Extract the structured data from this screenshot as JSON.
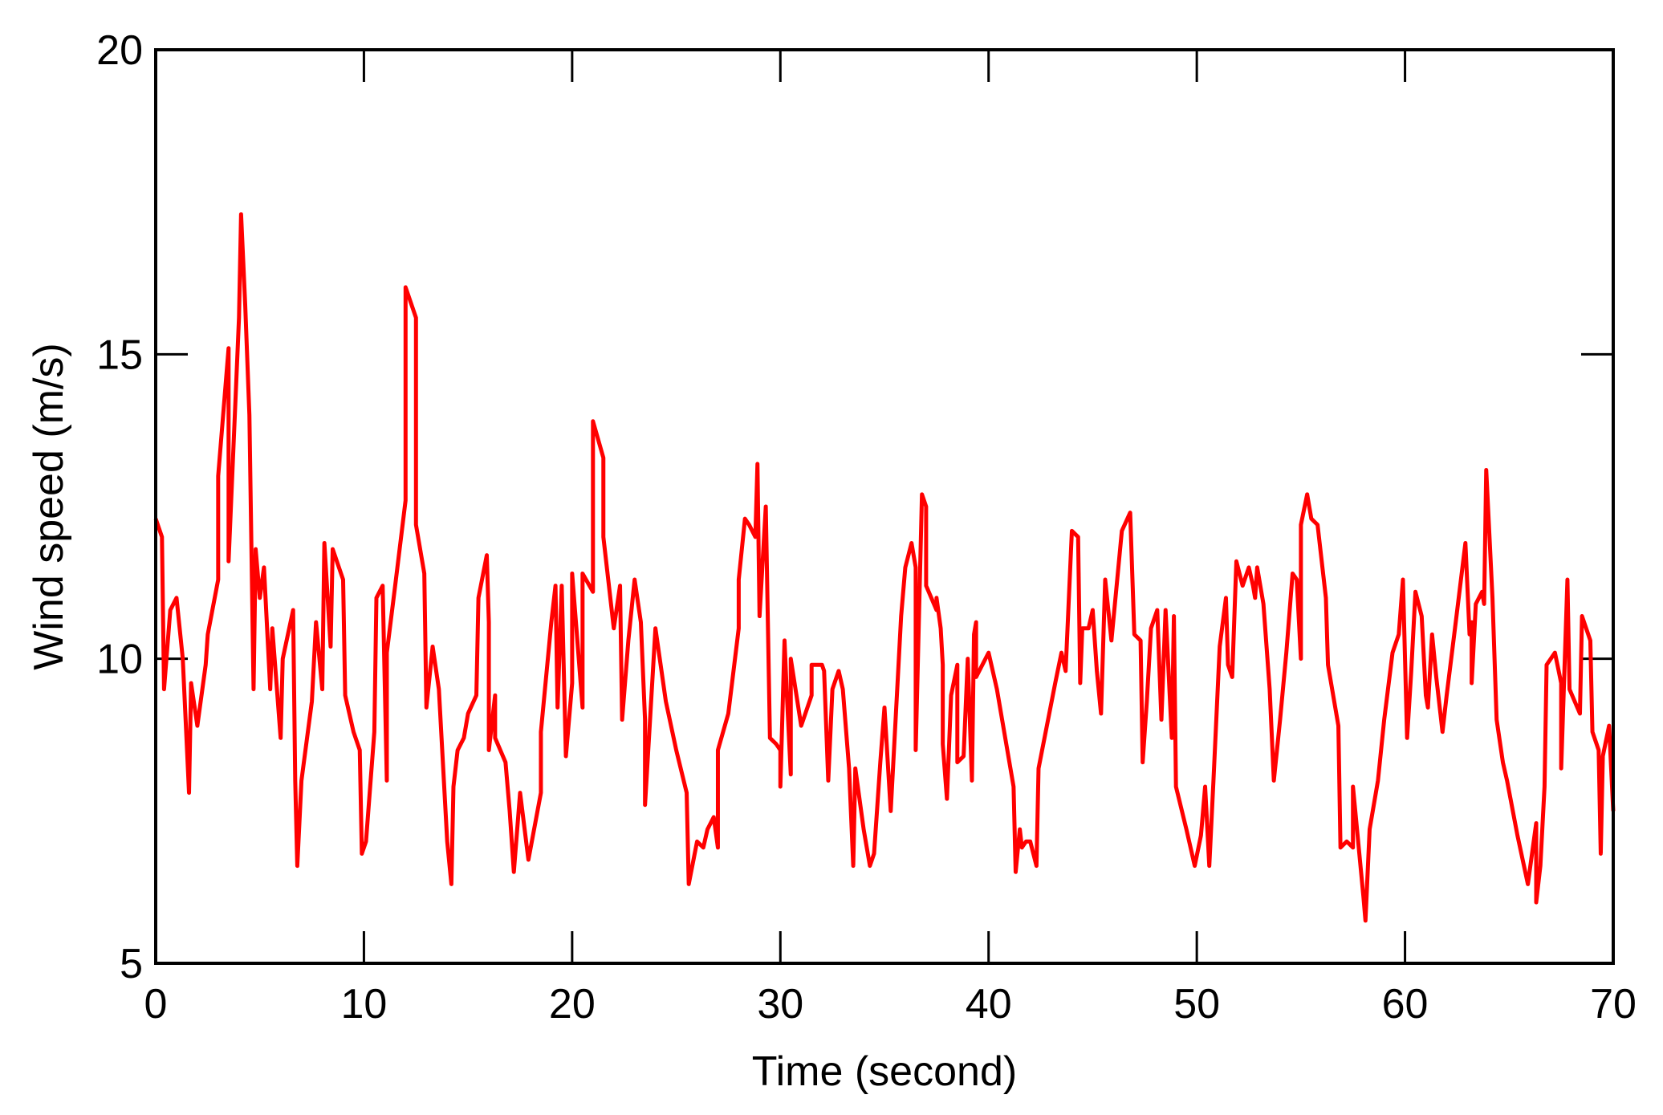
{
  "chart_data": {
    "type": "line",
    "xlabel": "Time (second)",
    "ylabel": "Wind speed (m/s)",
    "xlim": [
      0,
      70
    ],
    "ylim": [
      5,
      20
    ],
    "xticks": [
      0,
      10,
      20,
      30,
      40,
      50,
      60,
      70
    ],
    "yticks": [
      5,
      10,
      15,
      20
    ],
    "x": [
      0,
      0.3,
      0.4,
      0.7,
      1.0,
      1.3,
      1.6,
      1.7,
      2.0,
      2.4,
      2.5,
      3.0,
      3.0,
      3.5,
      3.5,
      4.0,
      4.1,
      4.3,
      4.5,
      4.7,
      4.8,
      5.0,
      5.2,
      5.5,
      5.6,
      6.0,
      6.1,
      6.6,
      6.7,
      6.8,
      7.0,
      7.5,
      7.7,
      8.0,
      8.1,
      8.4,
      8.5,
      9.0,
      9.1,
      9.5,
      9.8,
      9.9,
      10.1,
      10.5,
      10.6,
      10.9,
      11.1,
      11.1,
      11.5,
      12.0,
      12.0,
      12.5,
      12.5,
      12.9,
      13.0,
      13.3,
      13.6,
      14.0,
      14.2,
      14.3,
      14.5,
      14.8,
      15.0,
      15.4,
      15.5,
      15.9,
      16.0,
      16.0,
      16.3,
      16.3,
      16.8,
      17.0,
      17.2,
      17.5,
      17.9,
      18.5,
      18.5,
      19.0,
      19.2,
      19.3,
      19.5,
      19.7,
      20.0,
      20.0,
      20.5,
      20.5,
      21.0,
      21.0,
      21.5,
      21.5,
      22.0,
      22.3,
      22.4,
      22.7,
      23.0,
      23.3,
      23.5,
      23.5,
      24.0,
      24.5,
      25.0,
      25.5,
      25.6,
      26.0,
      26.3,
      26.5,
      26.8,
      27.0,
      27.0,
      27.5,
      28.0,
      28.0,
      28.3,
      28.5,
      28.8,
      28.9,
      29.0,
      29.3,
      29.5,
      29.8,
      30.0,
      30.0,
      30.2,
      30.3,
      30.5,
      30.5,
      31.0,
      31.5,
      31.5,
      32.0,
      32.1,
      32.3,
      32.5,
      32.8,
      33.0,
      33.3,
      33.5,
      33.6,
      34.0,
      34.3,
      34.5,
      34.8,
      35.0,
      35.3,
      35.8,
      36.0,
      36.3,
      36.5,
      36.5,
      36.8,
      37.0,
      37.0,
      37.5,
      37.5,
      37.7,
      37.8,
      37.8,
      38.0,
      38.2,
      38.5,
      38.5,
      38.8,
      39.0,
      39.2,
      39.3,
      39.4,
      39.4,
      40.0,
      40.4,
      40.7,
      41.2,
      41.3,
      41.5,
      41.6,
      41.8,
      42.0,
      42.3,
      42.4,
      42.8,
      43.2,
      43.5,
      43.7,
      44.0,
      44.3,
      44.4,
      44.5,
      44.8,
      45.0,
      45.2,
      45.4,
      45.6,
      45.9,
      46.4,
      46.8,
      47.0,
      47.3,
      47.4,
      47.6,
      47.8,
      48.1,
      48.3,
      48.5,
      48.8,
      48.9,
      49.0,
      49.5,
      49.9,
      50.2,
      50.4,
      50.6,
      50.8,
      51.1,
      51.4,
      51.5,
      51.7,
      51.9,
      52.2,
      52.5,
      52.7,
      52.8,
      52.9,
      53.2,
      53.5,
      53.7,
      54.0,
      54.3,
      54.6,
      54.8,
      55.0,
      55.0,
      55.3,
      55.5,
      55.8,
      56.2,
      56.3,
      56.8,
      56.9,
      57.2,
      57.5,
      57.5,
      58.0,
      58.1,
      58.3,
      58.7,
      59.0,
      59.4,
      59.7,
      59.9,
      60.1,
      60.3,
      60.5,
      60.8,
      61.0,
      61.1,
      61.3,
      61.5,
      61.8,
      62.0,
      62.4,
      62.9,
      63.1,
      63.2,
      63.2,
      63.4,
      63.7,
      63.8,
      63.9,
      64.2,
      64.4,
      64.7,
      64.9,
      65.4,
      65.9,
      66.3,
      66.3,
      66.5,
      66.7,
      66.8,
      67.2,
      67.5,
      67.5,
      67.8,
      67.9,
      68.4,
      68.5,
      68.9,
      69.0,
      69.3,
      69.4,
      69.5,
      69.8,
      70.0
    ],
    "series": [
      {
        "color": "#ff0000",
        "values": [
          12.3,
          12.0,
          9.5,
          10.8,
          11.0,
          10.0,
          7.8,
          9.6,
          8.9,
          9.9,
          10.4,
          11.3,
          13.0,
          15.1,
          11.6,
          15.6,
          17.3,
          15.8,
          14.0,
          9.5,
          11.8,
          11.0,
          11.5,
          9.5,
          10.5,
          8.7,
          10.0,
          10.8,
          8.0,
          6.6,
          8.0,
          9.3,
          10.6,
          9.5,
          11.9,
          10.2,
          11.8,
          11.3,
          9.4,
          8.8,
          8.5,
          6.8,
          7.0,
          8.8,
          11.0,
          11.2,
          8.0,
          10.1,
          11.2,
          12.6,
          16.1,
          15.6,
          12.2,
          11.4,
          9.2,
          10.2,
          9.5,
          7.0,
          6.3,
          7.9,
          8.5,
          8.7,
          9.1,
          9.4,
          11.0,
          11.7,
          10.6,
          8.5,
          9.4,
          8.7,
          8.3,
          7.5,
          6.5,
          7.8,
          6.7,
          7.8,
          8.8,
          10.6,
          11.2,
          9.2,
          11.2,
          8.4,
          9.6,
          11.4,
          9.2,
          11.4,
          11.1,
          13.9,
          13.3,
          12.0,
          10.5,
          11.2,
          9.0,
          10.3,
          11.3,
          10.6,
          9.0,
          7.6,
          10.5,
          9.3,
          8.5,
          7.8,
          6.3,
          7.0,
          6.9,
          7.2,
          7.4,
          6.9,
          8.5,
          9.1,
          10.5,
          11.3,
          12.3,
          12.2,
          12.0,
          13.2,
          10.7,
          12.5,
          8.7,
          8.6,
          8.5,
          7.9,
          10.3,
          9.5,
          8.1,
          10.0,
          8.9,
          9.4,
          9.9,
          9.9,
          9.8,
          8.0,
          9.5,
          9.8,
          9.5,
          8.2,
          6.6,
          8.2,
          7.2,
          6.6,
          6.8,
          8.3,
          9.2,
          7.5,
          10.7,
          11.5,
          11.9,
          11.5,
          8.5,
          12.7,
          12.5,
          11.2,
          10.8,
          11.0,
          10.5,
          9.9,
          8.6,
          7.7,
          9.4,
          9.9,
          8.3,
          8.4,
          10.0,
          8.0,
          10.4,
          10.6,
          9.7,
          10.1,
          9.5,
          8.9,
          7.9,
          6.5,
          7.2,
          6.9,
          7.0,
          7.0,
          6.6,
          8.2,
          8.9,
          9.6,
          10.1,
          9.8,
          12.1,
          12.0,
          9.6,
          10.5,
          10.5,
          10.8,
          9.8,
          9.1,
          11.3,
          10.3,
          12.1,
          12.4,
          10.4,
          10.3,
          8.3,
          9.3,
          10.5,
          10.8,
          9.0,
          10.8,
          8.7,
          10.7,
          7.9,
          7.2,
          6.6,
          7.1,
          7.9,
          6.6,
          8.0,
          10.2,
          11.0,
          9.9,
          9.7,
          11.6,
          11.2,
          11.5,
          11.2,
          11.0,
          11.5,
          10.9,
          9.5,
          8.0,
          9.0,
          10.1,
          11.4,
          11.3,
          10.0,
          12.2,
          12.7,
          12.3,
          12.2,
          11.0,
          9.9,
          8.9,
          6.9,
          7.0,
          6.9,
          7.9,
          6.1,
          5.7,
          7.2,
          8.0,
          9.0,
          10.1,
          10.4,
          11.3,
          8.7,
          9.8,
          11.1,
          10.7,
          9.4,
          9.2,
          10.4,
          9.7,
          8.8,
          9.4,
          10.5,
          11.9,
          10.4,
          10.6,
          9.6,
          10.9,
          11.1,
          10.9,
          13.1,
          11.0,
          9.0,
          8.3,
          8.0,
          7.1,
          6.3,
          7.3,
          6.0,
          6.6,
          7.9,
          9.9,
          10.1,
          9.6,
          8.2,
          11.3,
          9.5,
          9.1,
          10.7,
          10.3,
          8.8,
          8.5,
          6.8,
          8.4,
          8.9,
          7.5
        ]
      }
    ]
  }
}
